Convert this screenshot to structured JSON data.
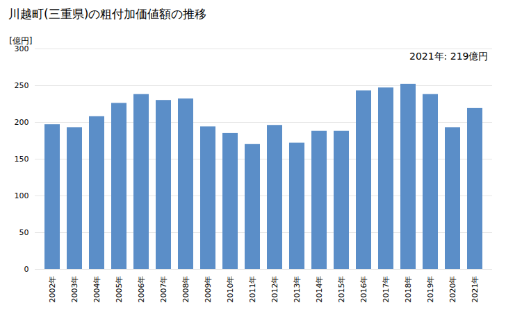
{
  "chart_data": {
    "type": "bar",
    "title": "川越町(三重県)の粗付加価値額の推移",
    "ylabel": "[億円]",
    "annotation": "2021年: 219億円",
    "categories": [
      "2002年",
      "2003年",
      "2004年",
      "2005年",
      "2006年",
      "2007年",
      "2008年",
      "2009年",
      "2010年",
      "2011年",
      "2012年",
      "2013年",
      "2014年",
      "2015年",
      "2016年",
      "2017年",
      "2018年",
      "2019年",
      "2020年",
      "2021年"
    ],
    "values": [
      197,
      193,
      208,
      226,
      238,
      230,
      232,
      194,
      185,
      170,
      196,
      172,
      188,
      188,
      243,
      247,
      252,
      238,
      193,
      219
    ],
    "color": "#5B8EC8",
    "ylim": [
      0,
      300
    ],
    "yticks": [
      0,
      50,
      100,
      150,
      200,
      250,
      300
    ],
    "grid": true
  }
}
